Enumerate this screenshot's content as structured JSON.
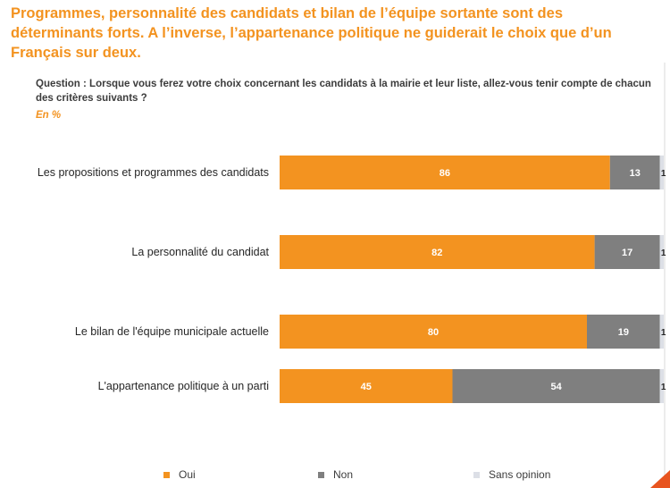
{
  "title": "Programmes, personnalité des candidats et bilan de l’équipe sortante sont des déterminants forts.  A l’inverse, l’appartenance politique ne guiderait le choix que d’un Français sur deux.",
  "question": "Question : Lorsque vous ferez votre choix concernant les candidats à la mairie et leur liste, allez-vous tenir compte de chacun des critères suivants ?",
  "unit": "En  %",
  "colors": {
    "accent": "#f39320",
    "oui": "#f39320",
    "non": "#7f7f7f",
    "sans_opinion": "#dcdfe6",
    "corner": "#e8541f"
  },
  "chart_data": {
    "type": "bar",
    "orientation": "horizontal",
    "stacked": true,
    "xlim": [
      0,
      100
    ],
    "categories": [
      "Les propositions et programmes des candidats",
      "La personnalité du candidat",
      "Le bilan de l'équipe municipale actuelle",
      "L'appartenance politique à un parti"
    ],
    "series": [
      {
        "name": "Oui",
        "values": [
          86,
          82,
          80,
          45
        ]
      },
      {
        "name": "Non",
        "values": [
          13,
          17,
          19,
          54
        ]
      },
      {
        "name": "Sans opinion",
        "values": [
          1,
          1,
          1,
          1
        ]
      }
    ],
    "legend_position": "bottom",
    "grid": false
  }
}
